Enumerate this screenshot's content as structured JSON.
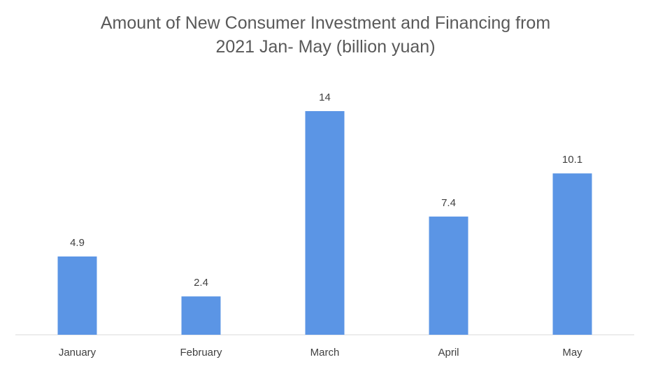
{
  "chart_data": {
    "type": "bar",
    "title_lines": [
      "Amount of New Consumer Investment and Financing from",
      "2021 Jan- May (billion yuan)"
    ],
    "categories": [
      "January",
      "February",
      "March",
      "April",
      "May"
    ],
    "values": [
      4.9,
      2.4,
      14,
      7.4,
      10.1
    ],
    "value_labels": [
      "4.9",
      "2.4",
      "14",
      "7.4",
      "10.1"
    ],
    "ylim": [
      0,
      14
    ],
    "grid": false,
    "legend": "none",
    "colors": {
      "bar": "#5B95E5",
      "axis": "#d9d9d9",
      "text": "#404040",
      "title": "#595959"
    }
  }
}
